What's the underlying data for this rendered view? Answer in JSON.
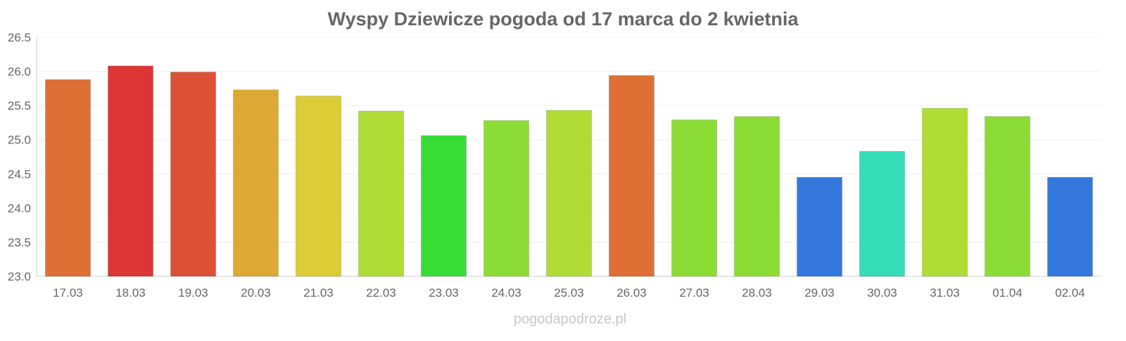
{
  "chart_data": {
    "type": "bar",
    "title": "Wyspy Dziewicze pogoda od 17 marca do 2 kwietnia",
    "xlabel": "",
    "ylabel": "",
    "ylim": [
      23.0,
      26.5
    ],
    "yticks": [
      "23.0",
      "23.5",
      "24.0",
      "24.5",
      "25.0",
      "25.5",
      "26.0",
      "26.5"
    ],
    "grid": true,
    "categories": [
      "17.03",
      "18.03",
      "19.03",
      "20.03",
      "21.03",
      "22.03",
      "23.03",
      "24.03",
      "25.03",
      "26.03",
      "27.03",
      "28.03",
      "29.03",
      "30.03",
      "31.03",
      "01.04",
      "02.04"
    ],
    "values": [
      25.88,
      26.08,
      25.99,
      25.73,
      25.64,
      25.42,
      25.06,
      25.28,
      25.43,
      25.94,
      25.29,
      25.34,
      24.45,
      24.83,
      25.46,
      25.34,
      24.45
    ],
    "colors": [
      "#de6f35",
      "#dd3535",
      "#dd5035",
      "#dda935",
      "#dccc35",
      "#b0dd35",
      "#36dd35",
      "#8bdd35",
      "#b0dd35",
      "#de6f35",
      "#8bdd35",
      "#8bdd35",
      "#3578dd",
      "#35dcb8",
      "#b0dd35",
      "#8bdd35",
      "#3578dd"
    ]
  },
  "watermark": "pogodapodroze.pl"
}
